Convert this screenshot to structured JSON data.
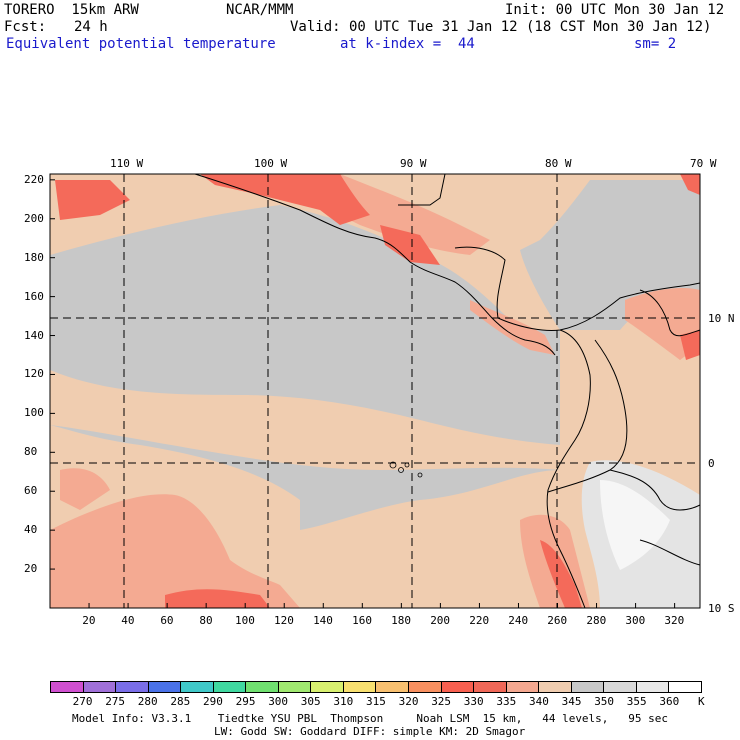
{
  "header": {
    "model": "TORERO  15km ARW",
    "center": "NCAR/MMM",
    "init": "Init: 00 UTC Mon 30 Jan 12",
    "fcst_label": "Fcst:",
    "fcst_value": "24 h",
    "valid": "Valid: 00 UTC Tue 31 Jan 12 (18 CST Mon 30 Jan 12)",
    "field": "Equivalent potential temperature",
    "kindex": "at k-index =  44",
    "smooth": "sm= 2"
  },
  "map": {
    "lon_labels": [
      "110 W",
      "100 W",
      "90 W",
      "80 W",
      "70 W"
    ],
    "lat_labels": [
      "10 N",
      "0",
      "10 S"
    ],
    "y_ticks": [
      "220",
      "200",
      "180",
      "160",
      "140",
      "120",
      "100",
      "80",
      "60",
      "40",
      "20"
    ],
    "x_ticks": [
      "20",
      "40",
      "60",
      "80",
      "100",
      "120",
      "140",
      "160",
      "180",
      "200",
      "220",
      "240",
      "260",
      "280",
      "300",
      "320"
    ],
    "colors": {
      "grey": "#c8c8c8",
      "beige": "#f0cdb0",
      "salmon": "#f4aa92",
      "red": "#f46a5a",
      "light": "#e4e4e4",
      "white": "#f6f6f6"
    }
  },
  "colorbar": {
    "labels": [
      "270",
      "275",
      "280",
      "285",
      "290",
      "295",
      "300",
      "305",
      "310",
      "315",
      "320",
      "325",
      "330",
      "335",
      "340",
      "345",
      "350",
      "355",
      "360",
      "K"
    ],
    "colors": [
      "#d050d0",
      "#a070d8",
      "#7a6ee8",
      "#4a72e8",
      "#40c8c8",
      "#40d8a0",
      "#70e070",
      "#a0e870",
      "#d8f070",
      "#f8e070",
      "#f8c070",
      "#f89060",
      "#f86050",
      "#f06858",
      "#f4a890",
      "#f0cdb0",
      "#c8c8c8",
      "#d8d8d8",
      "#e8e8e8",
      "#ffffff"
    ]
  },
  "info": {
    "line1": "Model Info: V3.3.1    Tiedtke YSU PBL  Thompson     Noah LSM  15 km,   44 levels,   95 sec",
    "line2": "LW: Godd SW: Goddard DIFF: simple KM: 2D Smagor"
  }
}
